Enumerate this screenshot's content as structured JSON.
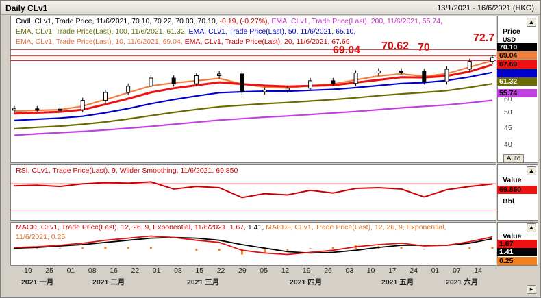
{
  "window": {
    "title": "Daily CLv1",
    "date_range": "13/1/2021 - 16/6/2021 (HKG)"
  },
  "price_panel": {
    "legend_lines": [
      {
        "text": "Cndl, CLv1, Trade Price, 11/6/2021, 70.10, 70.22, 70.03, 70.10, ",
        "color": "#000000"
      },
      {
        "text": "-0.19, (-0.27%), ",
        "color": "#cc0000"
      },
      {
        "text": "EMA, CLv1, Trade Price(Last),  200,  11/6/2021, 55.74,",
        "color": "#c030c0"
      },
      {
        "text": "EMA, CLv1, Trade Price(Last),  100,  11/6/2021, 61.32, ",
        "color": "#6b6b00"
      },
      {
        "text": "EMA, CLv1, Trade Price(Last),  50,  11/6/2021, 65.10,",
        "color": "#0000cc"
      },
      {
        "text": "EMA, CLv1, Trade Price(Last),  10,  11/6/2021, 69.04, ",
        "color": "#e07040"
      },
      {
        "text": "EMA, CLv1, Trade Price(Last),  20,  11/6/2021, 67.69",
        "color": "#cc0000"
      }
    ],
    "annotations": [
      "72.7",
      "70.62",
      "70",
      "69.04"
    ],
    "axis_title": "Price",
    "axis_unit": "USD",
    "ticks": [
      "60",
      "50",
      "45",
      "40"
    ],
    "auto_label": "Auto",
    "tags": [
      {
        "label": "70.10",
        "bg": "#000000",
        "fg": "#ffffff"
      },
      {
        "label": "69.04",
        "bg": "#f08040",
        "fg": "#000000"
      },
      {
        "label": "67.69",
        "bg": "#ee1111",
        "fg": "#000000"
      },
      {
        "label": "65.10",
        "bg": "#0000cc",
        "fg": "#0000cc"
      },
      {
        "label": "61.32",
        "bg": "#6b6b00",
        "fg": "#ffffff"
      },
      {
        "label": "55.74",
        "bg": "#c040e0",
        "fg": "#000000"
      }
    ]
  },
  "rsi_panel": {
    "legend": "RSI, CLv1, Trade Price(Last),  9,  Wilder Smoothing,  11/6/2021, 69.850",
    "axis_title": "Value",
    "tag": {
      "label": "69.850",
      "bg": "#ee1111",
      "fg": "#000000"
    },
    "sub_label": "Bbl"
  },
  "macd_panel": {
    "legend_a": "MACD, CLv1, Trade Price(Last),  12, 26, 9, Exponential,  11/6/2021, 1.67, ",
    "legend_b": "1.41, ",
    "legend_c": "MACDF, CLv1, Trade Price(Last),  12, 26, 9, Exponential,",
    "legend_d": "11/6/2021, 0.25",
    "axis_title": "Value",
    "tags": [
      {
        "label": "1.67",
        "bg": "#ee1111",
        "fg": "#000000"
      },
      {
        "label": "1.41",
        "bg": "#000000",
        "fg": "#ffffff"
      },
      {
        "label": "0.25",
        "bg": "#f08020",
        "fg": "#000000"
      }
    ]
  },
  "x_axis": {
    "days": [
      "19",
      "25",
      "01",
      "08",
      "16",
      "22",
      "01",
      "08",
      "15",
      "22",
      "29",
      "05",
      "12",
      "19",
      "26",
      "03",
      "10",
      "17",
      "24",
      "01",
      "07",
      "14"
    ],
    "months": [
      "2021 一月",
      "2021 二月",
      "2021 三月",
      "2021 四月",
      "2021 五月",
      "2021 六月"
    ]
  },
  "chart_data": {
    "type": "line",
    "price": {
      "x": [
        "2021-01-13",
        "2021-01-20",
        "2021-01-27",
        "2021-02-03",
        "2021-02-10",
        "2021-02-17",
        "2021-02-24",
        "2021-03-03",
        "2021-03-10",
        "2021-03-17",
        "2021-03-24",
        "2021-03-31",
        "2021-04-07",
        "2021-04-14",
        "2021-04-21",
        "2021-04-28",
        "2021-05-05",
        "2021-05-12",
        "2021-05-19",
        "2021-05-26",
        "2021-06-02",
        "2021-06-11"
      ],
      "series": [
        {
          "name": "Cndl CLv1 (close)",
          "color": "#000000",
          "values": [
            52.9,
            52.8,
            52.6,
            55.7,
            58.4,
            60.5,
            63.2,
            61.3,
            64.0,
            64.6,
            58.6,
            59.2,
            59.8,
            62.3,
            61.4,
            64.9,
            65.6,
            65.4,
            62.0,
            66.2,
            68.8,
            70.1
          ]
        },
        {
          "name": "EMA 10",
          "color": "#f08040",
          "values": [
            52.1,
            52.4,
            52.6,
            53.8,
            56.0,
            58.3,
            60.6,
            61.6,
            62.3,
            63.1,
            61.2,
            60.2,
            59.9,
            60.7,
            61.2,
            62.6,
            63.9,
            64.6,
            63.8,
            64.7,
            66.9,
            69.04
          ]
        },
        {
          "name": "EMA 20",
          "color": "#ee1111",
          "values": [
            51.3,
            51.6,
            51.9,
            52.6,
            54.4,
            56.3,
            58.4,
            59.8,
            60.8,
            61.8,
            61.2,
            60.7,
            60.4,
            60.6,
            60.8,
            61.7,
            62.6,
            63.5,
            63.4,
            63.9,
            65.4,
            67.69
          ]
        },
        {
          "name": "EMA 50",
          "color": "#0000cc",
          "values": [
            49.0,
            49.4,
            49.8,
            50.4,
            51.6,
            53.0,
            54.6,
            56.0,
            57.2,
            58.3,
            58.6,
            58.8,
            58.8,
            59.1,
            59.4,
            60.0,
            60.7,
            61.4,
            61.7,
            62.4,
            63.6,
            65.1
          ]
        },
        {
          "name": "EMA 100",
          "color": "#6b6b00",
          "values": [
            46.2,
            46.7,
            47.1,
            47.7,
            48.5,
            49.5,
            50.6,
            51.7,
            52.7,
            53.6,
            54.1,
            54.6,
            55.0,
            55.5,
            56.0,
            56.6,
            57.3,
            57.9,
            58.4,
            59.0,
            60.1,
            61.32
          ]
        },
        {
          "name": "EMA 200",
          "color": "#c040e0",
          "values": [
            44.0,
            44.5,
            44.9,
            45.3,
            45.8,
            46.4,
            47.0,
            47.7,
            48.4,
            49.1,
            49.6,
            50.1,
            50.5,
            51.0,
            51.5,
            52.0,
            52.6,
            53.2,
            53.7,
            54.2,
            54.9,
            55.74
          ]
        }
      ],
      "ylim": [
        37,
        74
      ]
    },
    "rsi": {
      "name": "RSI 9",
      "color": "#cc0000",
      "values": [
        67,
        68,
        66,
        70,
        72,
        71,
        73,
        62,
        66,
        64,
        49,
        55,
        53,
        60,
        56,
        63,
        64,
        62,
        50,
        61,
        66,
        69.85
      ],
      "ylim": [
        20,
        85
      ],
      "levels": [
        70,
        30
      ]
    },
    "macd": {
      "macd": [
        0.2,
        0.3,
        0.5,
        0.8,
        1.2,
        1.5,
        1.8,
        1.6,
        1.2,
        0.9,
        -0.2,
        -0.6,
        -0.8,
        -0.5,
        -0.2,
        0.3,
        0.6,
        0.8,
        0.4,
        0.5,
        1.0,
        1.67
      ],
      "signal": [
        0.1,
        0.2,
        0.4,
        0.6,
        0.9,
        1.2,
        1.5,
        1.6,
        1.5,
        1.2,
        0.6,
        0.1,
        -0.4,
        -0.6,
        -0.5,
        -0.2,
        0.2,
        0.5,
        0.5,
        0.5,
        0.8,
        1.41
      ],
      "histogram": [
        0.1,
        0.1,
        0.1,
        0.2,
        0.3,
        0.3,
        0.3,
        0.0,
        -0.3,
        -0.3,
        -0.8,
        -0.7,
        -0.4,
        0.1,
        0.3,
        0.5,
        0.4,
        0.3,
        -0.1,
        0.0,
        0.2,
        0.25
      ],
      "ylim": [
        -2,
        3
      ]
    }
  }
}
